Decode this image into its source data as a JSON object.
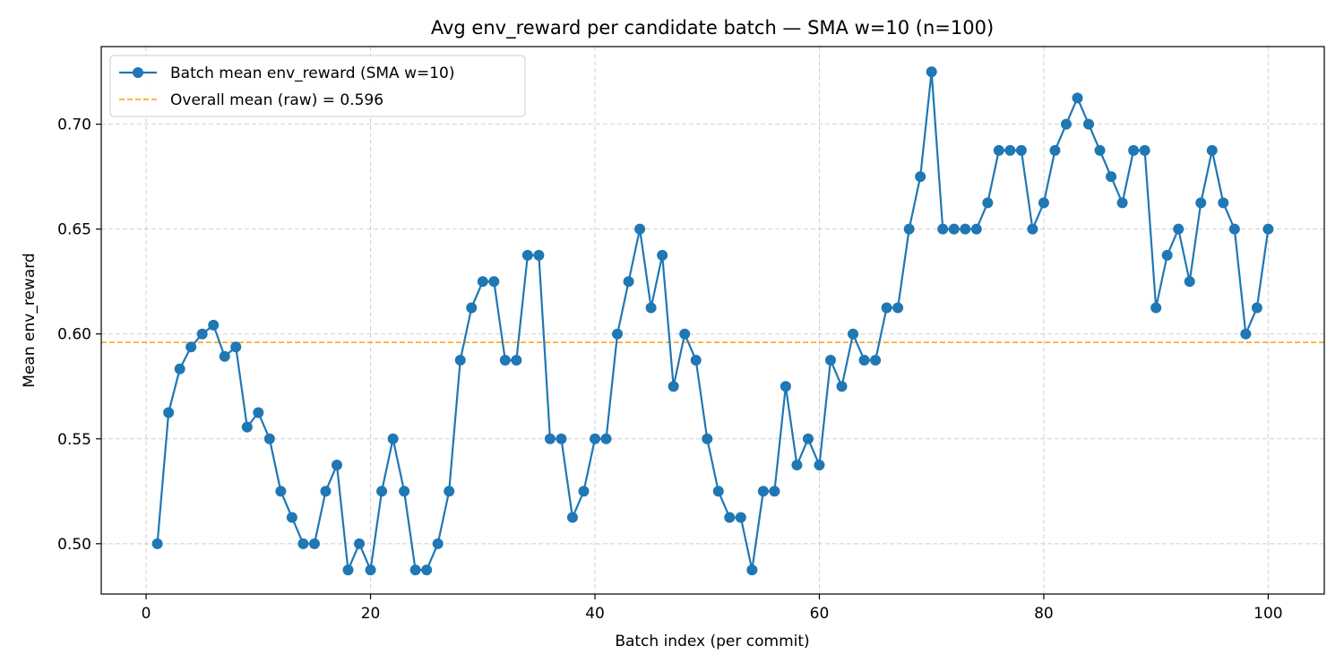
{
  "chart_data": {
    "type": "line",
    "title": "Avg env_reward per candidate batch — SMA w=10 (n=100)",
    "xlabel": "Batch index (per commit)",
    "ylabel": "Mean env_reward",
    "xlim": [
      -4,
      105
    ],
    "ylim": [
      0.476,
      0.737
    ],
    "xticks": [
      0,
      20,
      40,
      60,
      80,
      100
    ],
    "xtick_labels": [
      "0",
      "20",
      "40",
      "60",
      "80",
      "100"
    ],
    "yticks": [
      0.5,
      0.55,
      0.6,
      0.65,
      0.7
    ],
    "ytick_labels": [
      "0.50",
      "0.55",
      "0.60",
      "0.65",
      "0.70"
    ],
    "grid": true,
    "legend_position": "top-left",
    "x": [
      1,
      2,
      3,
      4,
      5,
      6,
      7,
      8,
      9,
      10,
      11,
      12,
      13,
      14,
      15,
      16,
      17,
      18,
      19,
      20,
      21,
      22,
      23,
      24,
      25,
      26,
      27,
      28,
      29,
      30,
      31,
      32,
      33,
      34,
      35,
      36,
      37,
      38,
      39,
      40,
      41,
      42,
      43,
      44,
      45,
      46,
      47,
      48,
      49,
      50,
      51,
      52,
      53,
      54,
      55,
      56,
      57,
      58,
      59,
      60,
      61,
      62,
      63,
      64,
      65,
      66,
      67,
      68,
      69,
      70,
      71,
      72,
      73,
      74,
      75,
      76,
      77,
      78,
      79,
      80,
      81,
      82,
      83,
      84,
      85,
      86,
      87,
      88,
      89,
      90,
      91,
      92,
      93,
      94,
      95,
      96,
      97,
      98,
      99,
      100
    ],
    "series": [
      {
        "name": "Batch mean env_reward (SMA w=10)",
        "color": "#1f77b4",
        "marker": "circle",
        "values": [
          0.5,
          0.5625,
          0.5833,
          0.5938,
          0.6,
          0.6042,
          0.5893,
          0.5938,
          0.5556,
          0.5625,
          0.55,
          0.525,
          0.5125,
          0.5,
          0.5,
          0.525,
          0.5375,
          0.4875,
          0.5,
          0.4875,
          0.525,
          0.55,
          0.525,
          0.4875,
          0.4875,
          0.5,
          0.525,
          0.5875,
          0.6125,
          0.625,
          0.625,
          0.5875,
          0.5875,
          0.6375,
          0.6375,
          0.55,
          0.55,
          0.5125,
          0.525,
          0.55,
          0.55,
          0.6,
          0.625,
          0.65,
          0.6125,
          0.6375,
          0.575,
          0.6,
          0.5875,
          0.55,
          0.525,
          0.5125,
          0.5125,
          0.4875,
          0.525,
          0.525,
          0.575,
          0.5375,
          0.55,
          0.5375,
          0.5875,
          0.575,
          0.6,
          0.5875,
          0.5875,
          0.6125,
          0.6125,
          0.65,
          0.675,
          0.725,
          0.65,
          0.65,
          0.65,
          0.65,
          0.6625,
          0.6875,
          0.6875,
          0.6875,
          0.65,
          0.6625,
          0.6875,
          0.7,
          0.7125,
          0.7,
          0.6875,
          0.675,
          0.6625,
          0.6875,
          0.6875,
          0.6125,
          0.6375,
          0.65,
          0.625,
          0.6625,
          0.6875,
          0.6625,
          0.65,
          0.6,
          0.6125,
          0.65
        ]
      }
    ],
    "reference_line": {
      "name": "Overall mean (raw) = 0.596",
      "value": 0.596,
      "color": "#ff9f0e",
      "style": "dashed"
    }
  }
}
